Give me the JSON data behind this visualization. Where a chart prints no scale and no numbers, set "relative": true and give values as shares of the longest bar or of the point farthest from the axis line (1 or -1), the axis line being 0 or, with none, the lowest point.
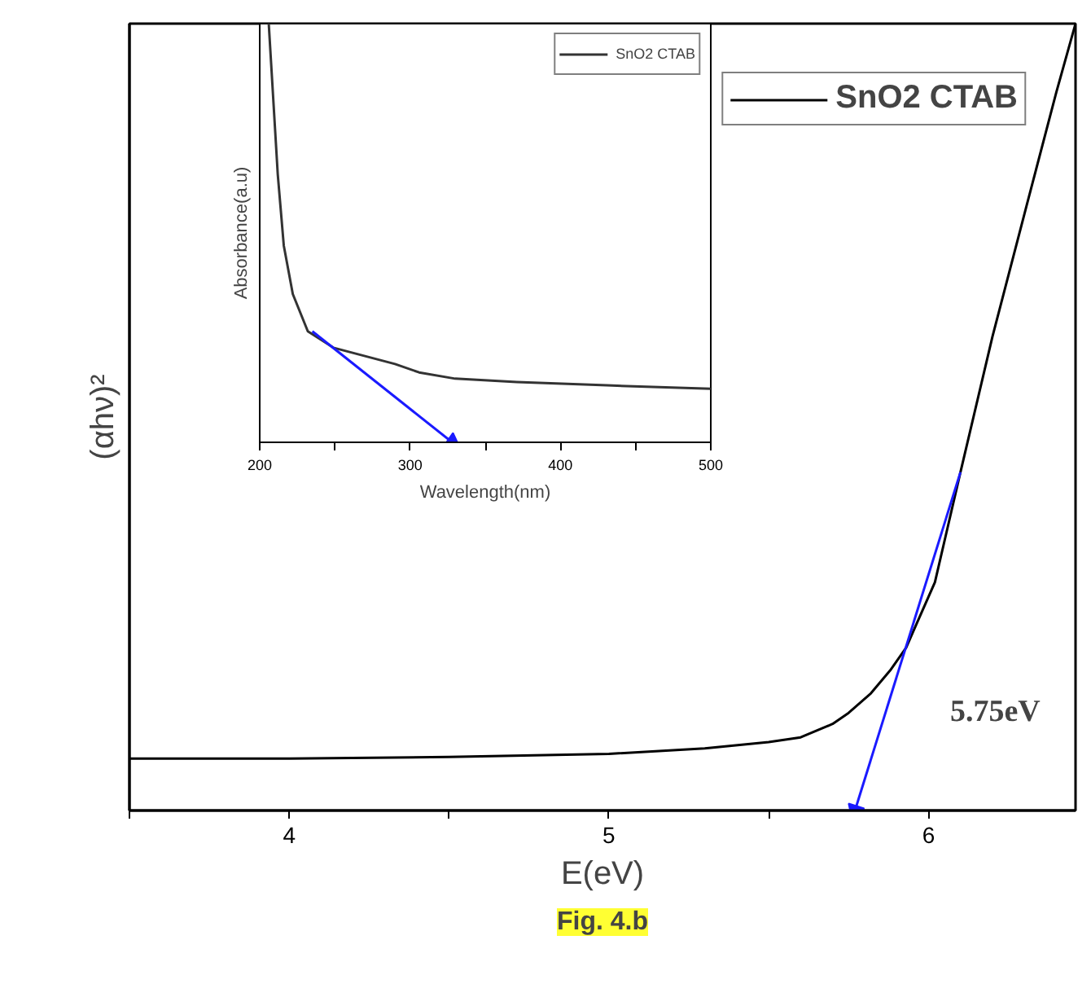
{
  "chart_data": [
    {
      "type": "line",
      "xlabel": "E(eV)",
      "ylabel": "(αhν)²",
      "xlim": [
        3.5,
        6.46
      ],
      "xticks": [
        {
          "value": 3.5,
          "label": null
        },
        4,
        {
          "value": 4.5,
          "label": null
        },
        5,
        {
          "value": 5.5,
          "label": null
        },
        6
      ],
      "relative": true,
      "tick_labels": "x",
      "legend": "top right",
      "grid": false,
      "series": [
        {
          "name": "SnO2 CTAB",
          "color": "#000000",
          "x": [
            3.5,
            4.0,
            4.5,
            5.0,
            5.3,
            5.5,
            5.6,
            5.7,
            5.75,
            5.82,
            5.88,
            5.93,
            5.97,
            6.02,
            6.06,
            6.1,
            6.2,
            6.3,
            6.4,
            6.46
          ],
          "values": [
            0.066,
            0.066,
            0.068,
            0.072,
            0.079,
            0.087,
            0.093,
            0.11,
            0.124,
            0.149,
            0.178,
            0.207,
            0.244,
            0.29,
            0.36,
            0.43,
            0.602,
            0.758,
            0.913,
            1.0
          ]
        },
        {
          "color": "#1a1aff",
          "x": [
            6.1,
            5.77
          ],
          "values": [
            0.43,
            0
          ]
        }
      ],
      "annotations": [
        "5.75eV",
        "Fig. 4.b"
      ]
    },
    {
      "type": "line",
      "xlabel": "Wavelength(nm)",
      "ylabel": "Absorbance(a.u)",
      "xlim": [
        200,
        500
      ],
      "xticks": [
        200,
        {
          "value": 250,
          "label": null
        },
        300,
        {
          "value": 350,
          "label": null
        },
        400,
        {
          "value": 450,
          "label": null
        },
        500
      ],
      "relative": true,
      "tick_labels": "x",
      "legend": "top right",
      "grid": false,
      "series": [
        {
          "name": "SnO2 CTAB",
          "color": "#333333",
          "x": [
            206,
            212,
            216,
            222,
            232,
            249,
            290,
            306,
            330,
            371,
            431,
            500
          ],
          "values": [
            1.0,
            0.64,
            0.47,
            0.354,
            0.265,
            0.226,
            0.187,
            0.167,
            0.152,
            0.144,
            0.136,
            0.128
          ]
        },
        {
          "color": "#1a1aff",
          "x": [
            235,
            328
          ],
          "values": [
            0.265,
            0
          ]
        }
      ]
    }
  ]
}
